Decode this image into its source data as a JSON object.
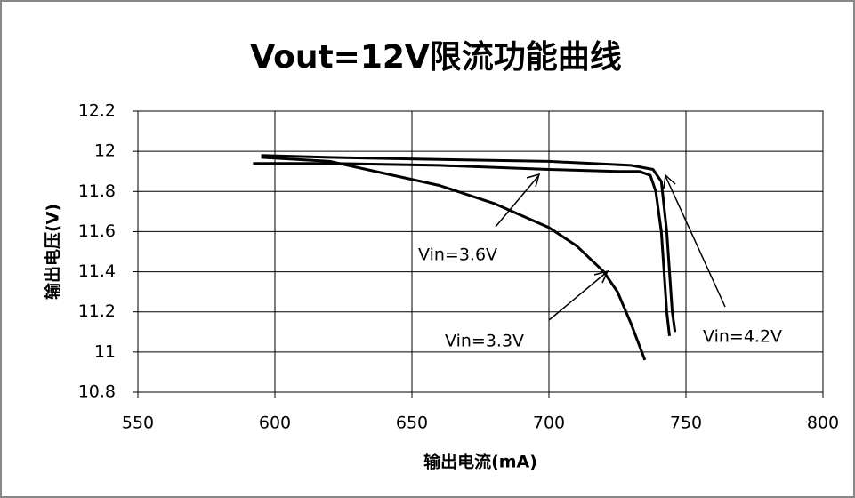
{
  "chart_data": {
    "type": "line",
    "title": "Vout=12V限流功能曲线",
    "x_label": "输出电流(mA)",
    "y_label": "输出电压(V)",
    "xlim": [
      550,
      800
    ],
    "xticks": [
      550,
      600,
      650,
      700,
      750,
      800
    ],
    "ylim": [
      10.8,
      12.2
    ],
    "yticks": [
      10.8,
      11,
      11.2,
      11.4,
      11.6,
      11.8,
      12,
      12.2
    ],
    "grid": true,
    "series": [
      {
        "name": "Vin=3.6V",
        "color": "#000000",
        "x": [
          592,
          620,
          660,
          700,
          725,
          733,
          737,
          739,
          741,
          742,
          743,
          744
        ],
        "values": [
          11.94,
          11.94,
          11.93,
          11.91,
          11.9,
          11.9,
          11.88,
          11.8,
          11.6,
          11.4,
          11.2,
          11.08
        ]
      },
      {
        "name": "Vin=3.3V",
        "color": "#000000",
        "x": [
          595,
          620,
          640,
          660,
          680,
          700,
          710,
          720,
          725,
          730,
          735
        ],
        "values": [
          11.97,
          11.95,
          11.89,
          11.83,
          11.74,
          11.62,
          11.53,
          11.4,
          11.3,
          11.14,
          10.96
        ]
      },
      {
        "name": "Vin=4.2V",
        "color": "#000000",
        "x": [
          595,
          620,
          660,
          700,
          730,
          738,
          741,
          743,
          744,
          745,
          746
        ],
        "values": [
          11.98,
          11.97,
          11.96,
          11.95,
          11.93,
          11.91,
          11.85,
          11.6,
          11.4,
          11.2,
          11.1
        ]
      }
    ]
  }
}
